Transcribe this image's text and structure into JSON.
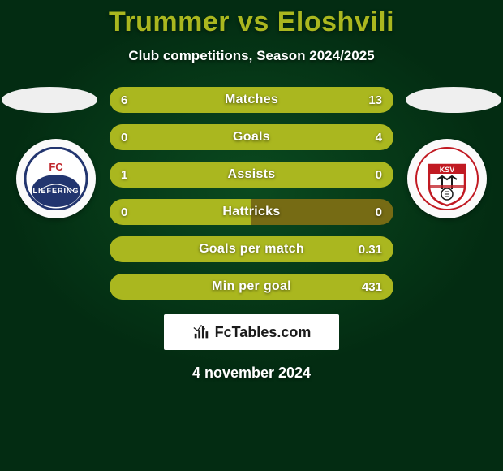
{
  "background_color": "#032c12",
  "title": "Trummer vs Eloshvili",
  "title_color": "#aab71f",
  "subtitle": "Club competitions, Season 2024/2025",
  "subtitle_color": "#ffffff",
  "country_oval_color": "#efefef",
  "crest_left": {
    "name": "FC Liefering",
    "short": "FC\nLIEFERING",
    "bg": "#ffffff",
    "accent": "#22356f",
    "accent2": "#c0282d"
  },
  "crest_right": {
    "name": "KSV",
    "short": "KSV",
    "bg": "#ffffff",
    "accent": "#c11a22",
    "accent2": "#1a1a1a"
  },
  "bar_track_color": "#766b14",
  "bar_left_fill_color": "#aab71f",
  "bar_right_fill_color": "#aab71f",
  "bar_label_color": "#ffffff",
  "bars": [
    {
      "label": "Matches",
      "left": "6",
      "right": "13",
      "left_pct": 32,
      "right_pct": 68
    },
    {
      "label": "Goals",
      "left": "0",
      "right": "4",
      "left_pct": 4,
      "right_pct": 96
    },
    {
      "label": "Assists",
      "left": "1",
      "right": "0",
      "left_pct": 96,
      "right_pct": 4
    },
    {
      "label": "Hattricks",
      "left": "0",
      "right": "0",
      "left_pct": 50,
      "right_pct": 0
    },
    {
      "label": "Goals per match",
      "left": "",
      "right": "0.31",
      "left_pct": 4,
      "right_pct": 96
    },
    {
      "label": "Min per goal",
      "left": "",
      "right": "431",
      "left_pct": 4,
      "right_pct": 96
    }
  ],
  "watermark": {
    "text": "FcTables.com",
    "bg": "#ffffff",
    "text_color": "#1a1a1a"
  },
  "date": "4 november 2024",
  "date_color": "#ffffff"
}
